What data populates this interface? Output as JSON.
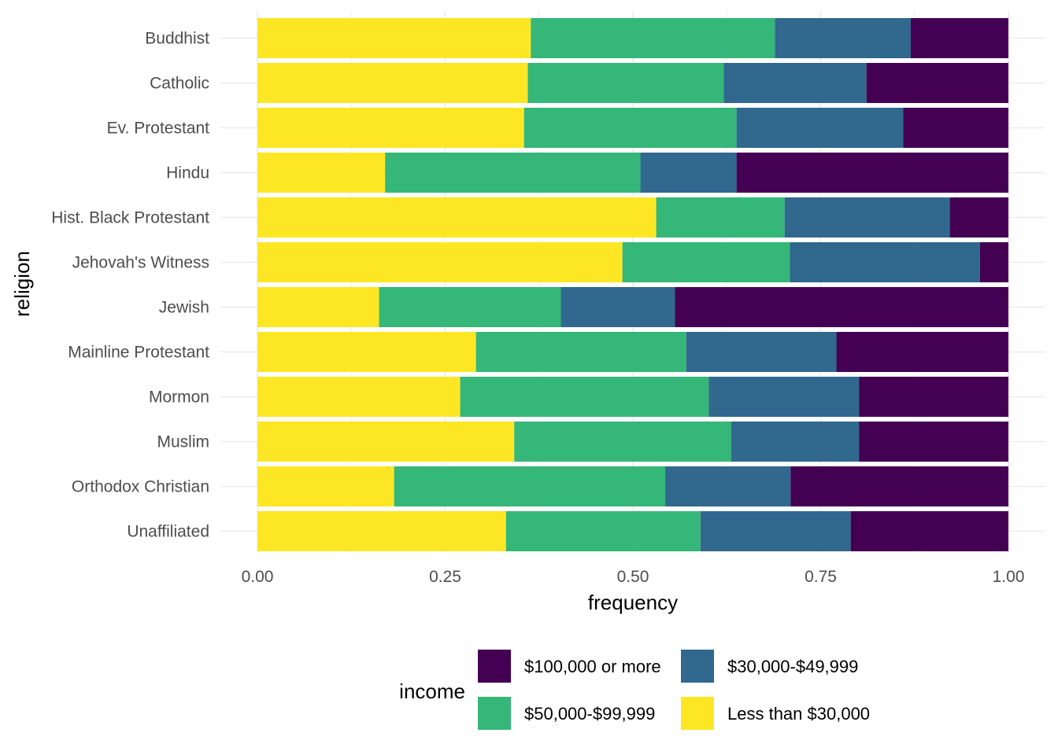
{
  "chart_data": {
    "type": "bar",
    "orientation": "horizontal",
    "stacked": "fill",
    "xlabel": "frequency",
    "ylabel": "religion",
    "xlim": [
      0,
      1
    ],
    "x_ticks": [
      "0.00",
      "0.25",
      "0.50",
      "0.75",
      "1.00"
    ],
    "grid": true,
    "legend_position": "bottom",
    "legend_title": "income",
    "categories": [
      "Buddhist",
      "Catholic",
      "Ev. Protestant",
      "Hindu",
      "Hist. Black Protestant",
      "Jehovah's Witness",
      "Jewish",
      "Mainline Protestant",
      "Mormon",
      "Muslim",
      "Orthodox Christian",
      "Unaffiliated"
    ],
    "series": [
      {
        "name": "Less than $30,000",
        "color": "#FDE725",
        "values": [
          0.364,
          0.36,
          0.355,
          0.17,
          0.531,
          0.486,
          0.162,
          0.291,
          0.27,
          0.342,
          0.182,
          0.331
        ]
      },
      {
        "name": "$50,000-$99,999",
        "color": "#35B779",
        "values": [
          0.325,
          0.261,
          0.283,
          0.34,
          0.171,
          0.223,
          0.242,
          0.28,
          0.331,
          0.289,
          0.361,
          0.259
        ]
      },
      {
        "name": "$30,000-$49,999",
        "color": "#31688E",
        "values": [
          0.181,
          0.19,
          0.222,
          0.128,
          0.22,
          0.253,
          0.152,
          0.2,
          0.2,
          0.17,
          0.167,
          0.2
        ]
      },
      {
        "name": "$100,000 or more",
        "color": "#440154",
        "values": [
          0.13,
          0.189,
          0.14,
          0.362,
          0.078,
          0.038,
          0.444,
          0.229,
          0.199,
          0.199,
          0.29,
          0.21
        ]
      }
    ],
    "legend_order": [
      "$100,000 or more",
      "$30,000-$49,999",
      "$50,000-$99,999",
      "Less than $30,000"
    ]
  }
}
